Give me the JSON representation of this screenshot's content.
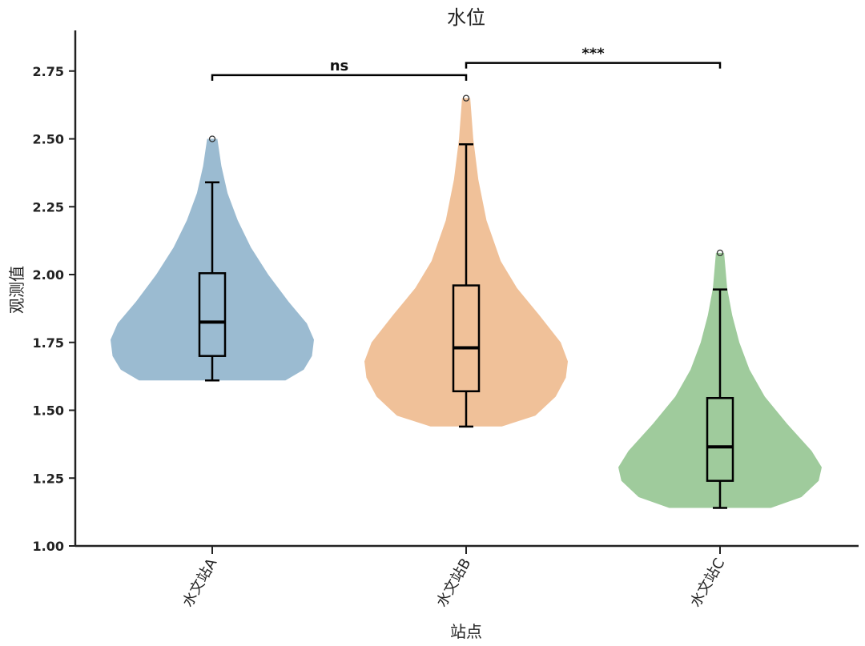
{
  "chart_data": {
    "type": "violin",
    "title": "水位",
    "xlabel": "站点",
    "ylabel": "观测值",
    "ylim": [
      1.0,
      2.88
    ],
    "yticks": [
      "1.00",
      "1.25",
      "1.50",
      "1.75",
      "2.00",
      "2.25",
      "2.50",
      "2.75"
    ],
    "ytick_values": [
      1.0,
      1.25,
      1.5,
      1.75,
      2.0,
      2.25,
      2.5,
      2.75
    ],
    "categories": [
      "水文站A",
      "水文站B",
      "水文站C"
    ],
    "grid": false,
    "series": [
      {
        "category": "水文站A",
        "color": "#9bbbd1",
        "min": 1.61,
        "q1": 1.7,
        "median": 1.825,
        "q3": 2.005,
        "max": 2.34,
        "outliers": [
          2.5
        ],
        "violin_range": [
          1.61,
          2.5
        ],
        "density": [
          [
            1.61,
            0.72
          ],
          [
            1.65,
            0.9
          ],
          [
            1.7,
            0.98
          ],
          [
            1.76,
            1.0
          ],
          [
            1.82,
            0.93
          ],
          [
            1.9,
            0.75
          ],
          [
            2.0,
            0.55
          ],
          [
            2.1,
            0.38
          ],
          [
            2.2,
            0.25
          ],
          [
            2.3,
            0.15
          ],
          [
            2.4,
            0.09
          ],
          [
            2.5,
            0.05
          ]
        ]
      },
      {
        "category": "水文站B",
        "color": "#f0c199",
        "min": 1.44,
        "q1": 1.57,
        "median": 1.73,
        "q3": 1.96,
        "max": 2.48,
        "outliers": [
          2.65
        ],
        "violin_range": [
          1.44,
          2.65
        ],
        "density": [
          [
            1.44,
            0.35
          ],
          [
            1.48,
            0.68
          ],
          [
            1.55,
            0.88
          ],
          [
            1.62,
            0.98
          ],
          [
            1.68,
            1.0
          ],
          [
            1.75,
            0.93
          ],
          [
            1.85,
            0.72
          ],
          [
            1.95,
            0.5
          ],
          [
            2.05,
            0.34
          ],
          [
            2.2,
            0.2
          ],
          [
            2.35,
            0.12
          ],
          [
            2.5,
            0.07
          ],
          [
            2.65,
            0.04
          ]
        ]
      },
      {
        "category": "水文站C",
        "color": "#9fcb9c",
        "min": 1.14,
        "q1": 1.24,
        "median": 1.365,
        "q3": 1.545,
        "max": 1.945,
        "outliers": [
          2.08
        ],
        "violin_range": [
          1.14,
          2.08
        ],
        "density": [
          [
            1.14,
            0.5
          ],
          [
            1.18,
            0.8
          ],
          [
            1.24,
            0.97
          ],
          [
            1.29,
            1.0
          ],
          [
            1.35,
            0.9
          ],
          [
            1.45,
            0.66
          ],
          [
            1.55,
            0.44
          ],
          [
            1.65,
            0.29
          ],
          [
            1.75,
            0.19
          ],
          [
            1.85,
            0.12
          ],
          [
            1.95,
            0.07
          ],
          [
            2.08,
            0.04
          ]
        ]
      }
    ],
    "annotations": [
      {
        "from": 0,
        "to": 1,
        "y": 2.735,
        "label": "ns"
      },
      {
        "from": 1,
        "to": 2,
        "y": 2.78,
        "label": "***"
      }
    ]
  }
}
